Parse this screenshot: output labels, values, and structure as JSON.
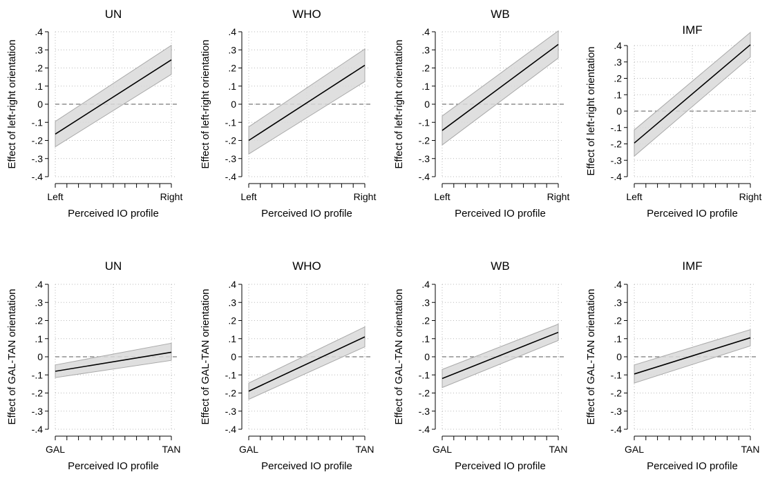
{
  "chart_data": [
    {
      "type": "line",
      "title": "UN",
      "xlabel": "Perceived IO profile",
      "ylabel": "Effect of left-right orientation",
      "x_tick_labels": [
        "Left",
        "Right"
      ],
      "y_ticks": [
        "-.4",
        "-.3",
        "-.2",
        "-.1",
        "0",
        ".1",
        ".2",
        ".3",
        ".4"
      ],
      "ylim": [
        -0.4,
        0.4
      ],
      "x": [
        0,
        10
      ],
      "series": [
        {
          "values": [
            -0.165,
            0.245
          ],
          "ci_lower": [
            -0.235,
            0.165
          ],
          "ci_upper": [
            -0.095,
            0.325
          ]
        }
      ],
      "reference_line": 0
    },
    {
      "type": "line",
      "title": "WHO",
      "xlabel": "Perceived IO profile",
      "ylabel": "Effect of left-right orientation",
      "x_tick_labels": [
        "Left",
        "Right"
      ],
      "y_ticks": [
        "-.4",
        "-.3",
        "-.2",
        "-.1",
        "0",
        ".1",
        ".2",
        ".3",
        ".4"
      ],
      "ylim": [
        -0.4,
        0.4
      ],
      "x": [
        0,
        10
      ],
      "series": [
        {
          "values": [
            -0.2,
            0.215
          ],
          "ci_lower": [
            -0.275,
            0.125
          ],
          "ci_upper": [
            -0.125,
            0.305
          ]
        }
      ],
      "reference_line": 0
    },
    {
      "type": "line",
      "title": "WB",
      "xlabel": "Perceived IO profile",
      "ylabel": "Effect of left-right orientation",
      "x_tick_labels": [
        "Left",
        "Right"
      ],
      "y_ticks": [
        "-.4",
        "-.3",
        "-.2",
        "-.1",
        "0",
        ".1",
        ".2",
        ".3",
        ".4"
      ],
      "ylim": [
        -0.4,
        0.4
      ],
      "x": [
        0,
        10
      ],
      "series": [
        {
          "values": [
            -0.145,
            0.33
          ],
          "ci_lower": [
            -0.225,
            0.255
          ],
          "ci_upper": [
            -0.065,
            0.405
          ]
        }
      ],
      "reference_line": 0
    },
    {
      "type": "line",
      "title": "IMF",
      "xlabel": "Perceived IO profile",
      "ylabel": "Effect of left-right orientation",
      "x_tick_labels": [
        "Left",
        "Right"
      ],
      "y_ticks": [
        "-.4",
        "-.3",
        "-.2",
        "-.1",
        "0",
        ".1",
        ".2",
        ".3",
        ".4"
      ],
      "ylim": [
        -0.4,
        0.4
      ],
      "x": [
        0,
        10
      ],
      "series": [
        {
          "values": [
            -0.195,
            0.405
          ],
          "ci_lower": [
            -0.275,
            0.33
          ],
          "ci_upper": [
            -0.115,
            0.48
          ]
        }
      ],
      "reference_line": 0
    },
    {
      "type": "line",
      "title": "UN",
      "xlabel": "Perceived IO profile",
      "ylabel": "Effect of GAL-TAN orientation",
      "x_tick_labels": [
        "GAL",
        "TAN"
      ],
      "y_ticks": [
        "-.4",
        "-.3",
        "-.2",
        "-.1",
        "0",
        ".1",
        ".2",
        ".3",
        ".4"
      ],
      "ylim": [
        -0.4,
        0.4
      ],
      "x": [
        0,
        10
      ],
      "series": [
        {
          "values": [
            -0.08,
            0.025
          ],
          "ci_lower": [
            -0.115,
            -0.02
          ],
          "ci_upper": [
            -0.045,
            0.075
          ]
        }
      ],
      "reference_line": 0
    },
    {
      "type": "line",
      "title": "WHO",
      "xlabel": "Perceived IO profile",
      "ylabel": "Effect of GAL-TAN orientation",
      "x_tick_labels": [
        "GAL",
        "TAN"
      ],
      "y_ticks": [
        "-.4",
        "-.3",
        "-.2",
        "-.1",
        "0",
        ".1",
        ".2",
        ".3",
        ".4"
      ],
      "ylim": [
        -0.4,
        0.4
      ],
      "x": [
        0,
        10
      ],
      "series": [
        {
          "values": [
            -0.19,
            0.11
          ],
          "ci_lower": [
            -0.235,
            0.055
          ],
          "ci_upper": [
            -0.145,
            0.165
          ]
        }
      ],
      "reference_line": 0
    },
    {
      "type": "line",
      "title": "WB",
      "xlabel": "Perceived IO profile",
      "ylabel": "Effect of GAL-TAN orientation",
      "x_tick_labels": [
        "GAL",
        "TAN"
      ],
      "y_ticks": [
        "-.4",
        "-.3",
        "-.2",
        "-.1",
        "0",
        ".1",
        ".2",
        ".3",
        ".4"
      ],
      "ylim": [
        -0.4,
        0.4
      ],
      "x": [
        0,
        10
      ],
      "series": [
        {
          "values": [
            -0.12,
            0.135
          ],
          "ci_lower": [
            -0.17,
            0.09
          ],
          "ci_upper": [
            -0.07,
            0.18
          ]
        }
      ],
      "reference_line": 0
    },
    {
      "type": "line",
      "title": "IMF",
      "xlabel": "Perceived IO profile",
      "ylabel": "Effect of GAL-TAN orientation",
      "x_tick_labels": [
        "GAL",
        "TAN"
      ],
      "y_ticks": [
        "-.4",
        "-.3",
        "-.2",
        "-.1",
        "0",
        ".1",
        ".2",
        ".3",
        ".4"
      ],
      "ylim": [
        -0.4,
        0.4
      ],
      "x": [
        0,
        10
      ],
      "series": [
        {
          "values": [
            -0.095,
            0.105
          ],
          "ci_lower": [
            -0.145,
            0.06
          ],
          "ci_upper": [
            -0.045,
            0.15
          ]
        }
      ],
      "reference_line": 0
    }
  ]
}
